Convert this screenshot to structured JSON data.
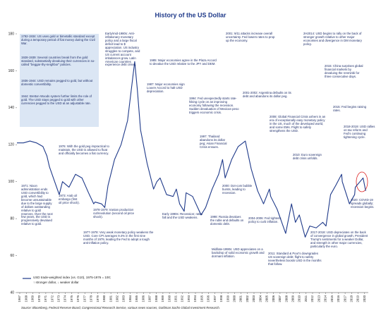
{
  "chart_data": {
    "type": "line",
    "title": "History of the US Dollar",
    "source": "Source: Bloomberg, Federal Reserve Board, Congressional Research Service, various news sources, Goldman Sachs Global Investment Research.",
    "legend_note": "↑ stronger dollar, ↓ weaker dollar",
    "x": [
      1967,
      1968,
      1969,
      1970,
      1971,
      1971.6,
      1972,
      1973,
      1973.5,
      1974,
      1975,
      1976,
      1977,
      1978,
      1978.8,
      1979,
      1980,
      1980.5,
      1981,
      1982,
      1983,
      1984,
      1985.1,
      1985.5,
      1986,
      1987,
      1988,
      1988.5,
      1989,
      1990,
      1991,
      1991.5,
      1992,
      1992.7,
      1993,
      1994,
      1995.3,
      1996,
      1997,
      1998,
      1998.6,
      1999,
      2000,
      2001,
      2002.1,
      2003,
      2004,
      2004.9,
      2005.8,
      2006,
      2007,
      2008.3,
      2009.2,
      2009.8,
      2010.4,
      2011.3,
      2012,
      2013,
      2014,
      2014.5,
      2015.2,
      2016,
      2016.9,
      2017,
      2018.1,
      2018.9,
      2019,
      2020.2,
      2020.6
    ],
    "series": [
      {
        "name": "USD trade-weighted index (vs. G10), 1975-1976 = 100;",
        "color": "#1f3a8a",
        "values": [
          121,
          121,
          122,
          121,
          119,
          114,
          108,
          98,
          93,
          100,
          97,
          104,
          102,
          94,
          88,
          89,
          88,
          86,
          98,
          112,
          120,
          133,
          165,
          150,
          128,
          110,
          96,
          100,
          102,
          93,
          92,
          96,
          88,
          84,
          94,
          92,
          82,
          86,
          96,
          104,
          112,
          102,
          112,
          119,
          122,
          107,
          95,
          88,
          96,
          92,
          85,
          72,
          88,
          78,
          82,
          70,
          76,
          75,
          78,
          76,
          93,
          98,
          104,
          100,
          88,
          93,
          97,
          102,
          95
        ]
      }
    ],
    "xlim": [
      1967,
      2021
    ],
    "xticks": [
      1967,
      1968,
      1969,
      1970,
      1971,
      1972,
      1973,
      1974,
      1975,
      1976,
      1977,
      1978,
      1979,
      1980,
      1981,
      1982,
      1983,
      1984,
      1985,
      1986,
      1987,
      1988,
      1989,
      1990,
      1991,
      1992,
      1993,
      1994,
      1995,
      1996,
      1997,
      1998,
      1999,
      2000,
      2001,
      2002,
      2003,
      2004,
      2005,
      2006,
      2007,
      2008,
      2009,
      2010,
      2011,
      2012,
      2013,
      2014,
      2015,
      2016,
      2017,
      2018,
      2019,
      2020
    ],
    "ylim": [
      40,
      180
    ],
    "yticks": [
      40,
      60,
      80,
      100,
      120,
      140,
      160,
      180
    ],
    "annotations": [
      "1792-1934: US uses gold or bimetallic standard except during a temporary period of fiat money during the Civil War.",
      "1928-1939: Several countries break from the gold standard, substantially devaluing their currencies in so-called \"beggar-thy-neighbor\" policies.",
      "1936-1944: USD remains pegged to gold, but without domestic convertibility.",
      "1944: Bretton Woods system further limits the role of gold. The USD stays pegged to gold with other currencies pegged to the USD at an adjustable rate.",
      "Early/mid-1980s: Anti-inflationary monetary policy and a large fiscal deficit lead to $ appreciation. US industry struggles to compete, and US current account imbalances grow. Latin American countries experience debt crises.",
      "1985: Major economies agree in the Plaza Accord to devalue the USD relative to the JPY and DEM.",
      "1987: Major economies sign Louvre Accord to halt USD depreciation.",
      "1994: Fed unexpectedly starts rate-hiking cycle on an improving economy following the recession. Sudden devaluation of Mexican peso triggers economic crisis.",
      "1997: Thailand abandons its dollar peg; Asian Financial Crisis ensues.",
      "2001: 9/11 attacks increase overall uncertainty. Fed lowers rates to prop up the economy.",
      "2001-2002: Argentina defaults on its debt and abandons its dollar peg.",
      "2H2014: USD begins to rally on the back of stronger growth relative to other major economies and divergence in DM monetary policy.",
      "2015: China surprises global financial markets by devaluing the renminbi for three consecutive days.",
      "2015: Fed begins raising rates.",
      "2018-2019: USD rallies on tax reform and Fed's continuing tightening cycle.",
      "2008: Global Financial Crisis ushers in an era of exceptionally easy monetary policy in the US, much of the developed world, and some EMs. Flight to safety strengthens the USD.",
      "2010: Euro sovereign debt crisis unfolds.",
      "2000: Dot-com bubble bursts, leading to recession.",
      "1971: Nixon administration ends USD convertibility to gold, which had become unsustainable due to the large supply of dollars outstanding relative to gold reserves. Over the next few years, the USD is progressively devalued relative to gold.",
      "1976: With the gold peg impractical to maintain, the USD is allowed to float and officially becomes a fiat currency.",
      "1973: Arab oil embargo (first oil price shock).",
      "1978-1979: Iranian production cut/revolution (second oil price shock).",
      "1977-1978: Very weak monetary policy weakens the USD. Core CPI averages 9.4% in the first nine months of 1979, leading the Fed to adopt a tough anti-inflation policy.",
      "Early 1990s: Recession; rates fall and the USD weakens.",
      "1998: Russia devalues the ruble and defaults on domestic debt.",
      "2004-2006: Fed tightens policy to curb inflation.",
      "Mid/late-1990s: USD appreciates on a backdrop of solid economic growth and dormant inflation.",
      "2011: Standard & Poor's downgrades US sovereign debt; flight to safety nevertheless boosts USD in the months that follow.",
      "2017-2018: USD depreciates on the back of convergence in global growth, President Trump's sentiments for a weaker Dollar, and strength in other major currencies, particularly the euro.",
      "2020: COVID-19 spreads globally; recession begins."
    ]
  }
}
